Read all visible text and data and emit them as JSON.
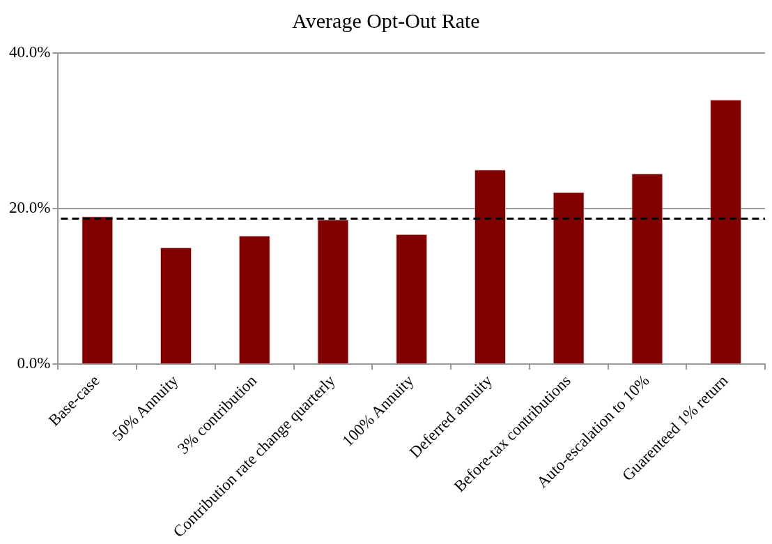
{
  "chart_data": {
    "type": "bar",
    "title": "Average Opt-Out Rate",
    "categories": [
      "Base-case",
      "50% Annuity",
      "3% contribution",
      "Contribution rate change quarterly",
      "100% Annuity",
      "Deferred annuity",
      "Before-tax contributions",
      "Auto-escalation to 10%",
      "Guarenteed 1% return"
    ],
    "values": [
      19.0,
      15.0,
      16.5,
      18.6,
      16.7,
      25.0,
      22.1,
      24.5,
      34.0
    ],
    "color": "#800000",
    "ylim": [
      0,
      40
    ],
    "yticks": [
      {
        "value": 0,
        "label": "0.0%"
      },
      {
        "value": 20,
        "label": "20.0%"
      },
      {
        "value": 40,
        "label": "40.0%"
      }
    ],
    "grid": "y",
    "ref_lines": [
      {
        "axis": "y",
        "value": 18.7,
        "color": "#000000",
        "line_style": "dashed"
      }
    ]
  }
}
